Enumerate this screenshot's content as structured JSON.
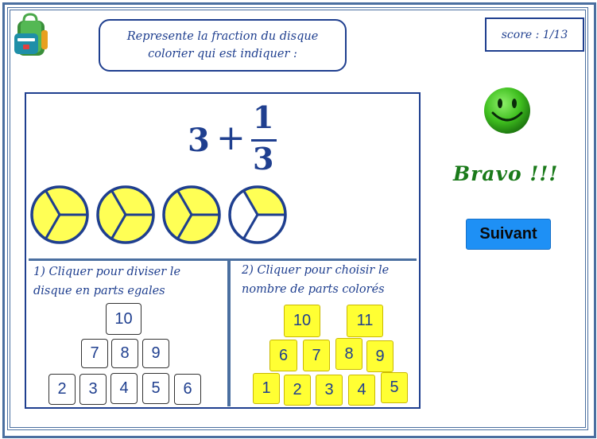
{
  "instruction": {
    "line1": "Represente la fraction du disque",
    "line2": "colorier qui est indiquer :"
  },
  "score": {
    "text": "score : 1/13"
  },
  "fraction": {
    "whole": "3",
    "operator": "+",
    "numerator": "1",
    "denominator": "3"
  },
  "disks": [
    {
      "parts": 3,
      "colored": 3
    },
    {
      "parts": 3,
      "colored": 3
    },
    {
      "parts": 3,
      "colored": 3
    },
    {
      "parts": 3,
      "colored": 1
    }
  ],
  "step1": {
    "line1": "1) Cliquer pour diviser le",
    "line2": "disque en parts egales",
    "buttons": [
      "10",
      "7",
      "8",
      "9",
      "2",
      "3",
      "4",
      "5",
      "6"
    ]
  },
  "step2": {
    "line1": "2) Cliquer pour choisir le",
    "line2": "nombre de parts colorés",
    "buttons": [
      "10",
      "11",
      "6",
      "7",
      "8",
      "9",
      "1",
      "2",
      "3",
      "4",
      "5"
    ]
  },
  "feedback": {
    "text": "Bravo !!!"
  },
  "next_button": {
    "label": "Suivant"
  },
  "colors": {
    "frame": "#4a6fa0",
    "text_blue": "#1f3f8f",
    "disk_fill": "#ffff55",
    "yellow_button": "#ffff33",
    "next_button": "#1e90f5",
    "bravo": "#1a7a1a",
    "smiley": "#3fbf1f"
  }
}
